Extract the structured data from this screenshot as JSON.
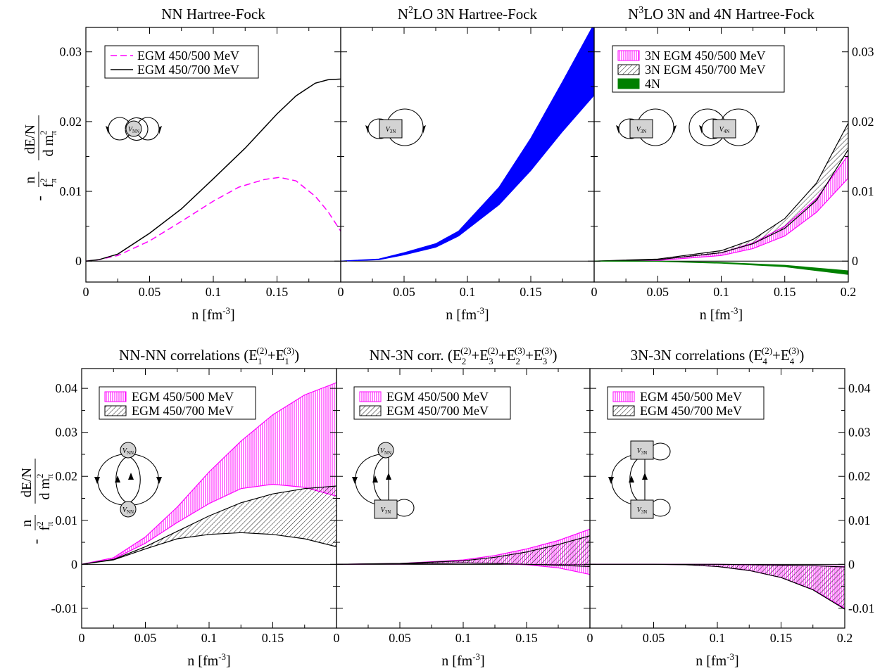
{
  "figure": {
    "xlabel": "n [fm",
    "xlabel_sup": "-3",
    "xlabel_close": "]",
    "ylabel": {
      "minus": "-",
      "n": "n",
      "f": "f",
      "f_sup": "2",
      "f_sub": "π",
      "dEN": "dE/N",
      "dm": "d m",
      "dm_sup": "2",
      "dm_sub": "π"
    }
  },
  "colors": {
    "magenta": "#ff00ff",
    "black": "#000000",
    "blue": "#0000ff",
    "green": "#008000",
    "node_fill": "#d3d3d3"
  },
  "chart_data": [
    {
      "type": "line",
      "title": "NN Hartree-Fock",
      "xlim": [
        0,
        0.2
      ],
      "ylim": [
        -0.003,
        0.0335
      ],
      "xticks": [
        "0",
        "0.05",
        "0.1",
        "0.15"
      ],
      "yticks": [
        "0",
        "0.01",
        "0.02",
        "0.03"
      ],
      "legend_position": "top-left",
      "series": [
        {
          "name": "EGM 450/500 MeV",
          "style": "dashed-line",
          "color": "#ff00ff",
          "x": [
            0,
            0.01,
            0.025,
            0.05,
            0.075,
            0.1,
            0.12,
            0.14,
            0.152,
            0.165,
            0.18,
            0.19,
            0.2
          ],
          "y": [
            0,
            0.0002,
            0.0008,
            0.0029,
            0.0057,
            0.0086,
            0.0106,
            0.0117,
            0.012,
            0.0115,
            0.0093,
            0.0071,
            0.0043
          ]
        },
        {
          "name": "EGM 450/700 MeV",
          "style": "line",
          "color": "#000000",
          "x": [
            0,
            0.01,
            0.025,
            0.05,
            0.075,
            0.1,
            0.125,
            0.15,
            0.165,
            0.18,
            0.19,
            0.2
          ],
          "y": [
            0,
            0.0002,
            0.001,
            0.004,
            0.0075,
            0.0118,
            0.0162,
            0.0211,
            0.0237,
            0.0255,
            0.026,
            0.0261
          ]
        }
      ],
      "diagram": {
        "nodes": [
          "NN"
        ]
      }
    },
    {
      "type": "area",
      "title_parts": [
        "N",
        "2",
        "LO 3N Hartree-Fock"
      ],
      "xlim": [
        0,
        0.2
      ],
      "ylim": [
        -0.003,
        0.0335
      ],
      "xticks": [
        "0",
        "0.05",
        "0.1",
        "0.15"
      ],
      "yticks": [],
      "series": [
        {
          "name": "",
          "style": "band",
          "color": "#0000ff",
          "x": [
            0,
            0.03,
            0.05,
            0.075,
            0.093,
            0.125,
            0.15,
            0.175,
            0.2
          ],
          "lower": [
            0,
            0.0002,
            0.0009,
            0.002,
            0.0036,
            0.0081,
            0.013,
            0.0186,
            0.0238
          ],
          "upper": [
            0,
            0.0003,
            0.0012,
            0.0025,
            0.0043,
            0.0106,
            0.0176,
            0.0257,
            0.034
          ]
        }
      ],
      "diagram": {
        "nodes": [
          "3N"
        ]
      }
    },
    {
      "type": "area",
      "title_parts": [
        "N",
        "3",
        "LO 3N and 4N Hartree-Fock"
      ],
      "xlim": [
        0,
        0.2
      ],
      "ylim": [
        -0.003,
        0.0335
      ],
      "xticks": [
        "0",
        "0.05",
        "0.1",
        "0.15",
        "0.2"
      ],
      "yticks_right": [
        "0",
        "0.01",
        "0.02",
        "0.03"
      ],
      "legend_position": "top-left",
      "series": [
        {
          "name": "3N EGM 450/500 MeV",
          "style": "vhatch-band",
          "color": "#ff00ff",
          "x": [
            0,
            0.05,
            0.1,
            0.125,
            0.15,
            0.175,
            0.2
          ],
          "lower": [
            0,
            0.0001,
            0.0008,
            0.0018,
            0.0036,
            0.007,
            0.0119
          ],
          "upper": [
            0,
            0.0002,
            0.0012,
            0.0026,
            0.005,
            0.009,
            0.0152
          ]
        },
        {
          "name": "3N EGM 450/700 MeV",
          "style": "dhatch-band",
          "color": "#000000",
          "x": [
            0,
            0.05,
            0.1,
            0.125,
            0.15,
            0.175,
            0.2
          ],
          "lower": [
            0,
            0.0002,
            0.0012,
            0.0025,
            0.0047,
            0.0087,
            0.016
          ],
          "upper": [
            0,
            0.0003,
            0.0015,
            0.0031,
            0.0061,
            0.0112,
            0.0198
          ]
        },
        {
          "name": "4N",
          "style": "band",
          "color": "#008000",
          "x": [
            0,
            0.05,
            0.1,
            0.15,
            0.2
          ],
          "lower": [
            0,
            -3e-05,
            -0.0003,
            -0.0008,
            -0.0019
          ],
          "upper": [
            0,
            -1e-05,
            -0.0002,
            -0.0006,
            -0.0014
          ]
        }
      ],
      "diagram": {
        "nodes": [
          "3N",
          "4N"
        ]
      }
    },
    {
      "type": "area",
      "title_parts": [
        "NN-NN correlations  (E",
        "1",
        "(2)",
        "+E",
        "1",
        "(3)",
        ")"
      ],
      "xlim": [
        0,
        0.2
      ],
      "ylim": [
        -0.0145,
        0.0445
      ],
      "xticks": [
        "0",
        "0.05",
        "0.1",
        "0.15"
      ],
      "yticks": [
        "-0.01",
        "0",
        "0.01",
        "0.02",
        "0.03",
        "0.04"
      ],
      "legend_position": "top",
      "series": [
        {
          "name": "EGM 450/500 MeV",
          "style": "vhatch-band",
          "color": "#ff00ff",
          "x": [
            0,
            0.025,
            0.05,
            0.075,
            0.1,
            0.125,
            0.15,
            0.175,
            0.2
          ],
          "lower": [
            0,
            0.0012,
            0.0048,
            0.0095,
            0.0138,
            0.0172,
            0.0182,
            0.0175,
            0.0155
          ],
          "upper": [
            0,
            0.0015,
            0.0062,
            0.013,
            0.021,
            0.028,
            0.034,
            0.0385,
            0.0413
          ]
        },
        {
          "name": "EGM 450/700 MeV",
          "style": "dhatch-band",
          "color": "#000000",
          "x": [
            0,
            0.025,
            0.05,
            0.075,
            0.1,
            0.125,
            0.15,
            0.175,
            0.2
          ],
          "lower": [
            0,
            0.001,
            0.0035,
            0.0058,
            0.0068,
            0.0072,
            0.0068,
            0.0058,
            0.004
          ],
          "upper": [
            0,
            0.0011,
            0.004,
            0.0075,
            0.011,
            0.014,
            0.016,
            0.0172,
            0.0178
          ]
        }
      ],
      "diagram": {
        "nodes": [
          "NN",
          "NN"
        ]
      }
    },
    {
      "type": "area",
      "title_parts": [
        "NN-3N corr. (E",
        "2",
        "(2)",
        "+E",
        "3",
        "(2)",
        "+E",
        "2",
        "(3)",
        "+E",
        "3",
        "(3)",
        ")"
      ],
      "xlim": [
        0,
        0.2
      ],
      "ylim": [
        -0.0145,
        0.0445
      ],
      "xticks": [
        "0",
        "0.05",
        "0.1",
        "0.15"
      ],
      "yticks": [],
      "legend_position": "top",
      "series": [
        {
          "name": "EGM 450/500 MeV",
          "style": "vhatch-band",
          "color": "#ff00ff",
          "x": [
            0,
            0.05,
            0.1,
            0.125,
            0.15,
            0.175,
            0.2
          ],
          "lower": [
            0,
            0.0001,
            0.0003,
            0.0002,
            -0.0001,
            -0.0008,
            -0.0023
          ],
          "upper": [
            0,
            0.0002,
            0.001,
            0.002,
            0.0035,
            0.0054,
            0.008
          ]
        },
        {
          "name": "EGM 450/700 MeV",
          "style": "dhatch-band",
          "color": "#000000",
          "x": [
            0,
            0.05,
            0.1,
            0.125,
            0.15,
            0.175,
            0.2
          ],
          "lower": [
            0,
            0.0001,
            0.0003,
            0.0002,
            0.0,
            -0.0002,
            -0.0005
          ],
          "upper": [
            0,
            0.0002,
            0.0008,
            0.0016,
            0.0028,
            0.0045,
            0.0065
          ]
        }
      ],
      "diagram": {
        "nodes": [
          "NN",
          "3N"
        ]
      }
    },
    {
      "type": "area",
      "title_parts": [
        "3N-3N correlations  (E",
        "4",
        "(2)",
        "+E",
        "4",
        "(3)",
        ")"
      ],
      "xlim": [
        0,
        0.2
      ],
      "ylim": [
        -0.0145,
        0.0445
      ],
      "xticks": [
        "0",
        "0.05",
        "0.1",
        "0.15",
        "0.2"
      ],
      "yticks_right": [
        "-0.01",
        "0",
        "0.01",
        "0.02",
        "0.03",
        "0.04"
      ],
      "legend_position": "top",
      "series": [
        {
          "name": "EGM 450/500 MeV",
          "style": "vhatch-band",
          "color": "#ff00ff",
          "x": [
            0,
            0.05,
            0.075,
            0.1,
            0.125,
            0.15,
            0.175,
            0.2
          ],
          "lower": [
            0,
            0,
            -0.0001,
            -0.0005,
            -0.0014,
            -0.003,
            -0.0057,
            -0.01
          ],
          "upper": [
            0,
            0,
            0,
            0,
            -0.0001,
            -0.0002,
            -0.0003,
            -0.0005
          ]
        },
        {
          "name": "EGM 450/700 MeV",
          "style": "dhatch-band",
          "color": "#000000",
          "x": [
            0,
            0.05,
            0.075,
            0.1,
            0.125,
            0.15,
            0.175,
            0.2
          ],
          "lower": [
            0,
            0,
            -0.0001,
            -0.0005,
            -0.0014,
            -0.003,
            -0.0058,
            -0.0102
          ],
          "upper": [
            0,
            0,
            0,
            0,
            -0.0001,
            -0.0002,
            -0.0003,
            -0.0006
          ]
        }
      ],
      "diagram": {
        "nodes": [
          "3N",
          "3N"
        ]
      }
    }
  ]
}
